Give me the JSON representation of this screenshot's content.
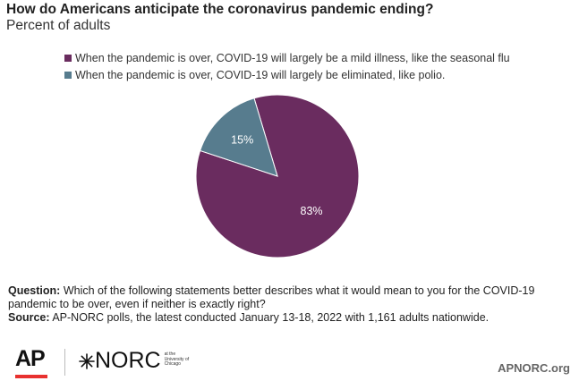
{
  "header": {
    "title": "How do Americans anticipate the coronavirus pandemic ending?",
    "subtitle": "Percent of adults"
  },
  "chart_data": {
    "type": "pie",
    "slices": [
      {
        "label": "When the pandemic is over, COVID-19 will largely be a mild illness, like the seasonal flu",
        "value": 83,
        "data_label": "83%",
        "color": "#6a2c5f"
      },
      {
        "label": "When the pandemic is over, COVID-19 will largely be eliminated, like polio.",
        "value": 15,
        "data_label": "15%",
        "color": "#577c8e"
      }
    ],
    "legend_position": "top"
  },
  "notes": {
    "question_label": "Question:",
    "question_text": " Which of the following statements better describes what it would mean to you for the COVID-19 pandemic to be over, even if neither is exactly right?",
    "source_label": "Source:",
    "source_text": "  AP-NORC polls, the latest conducted January 13-18, 2022 with 1,161 adults nationwide."
  },
  "footer": {
    "ap_logo": "AP",
    "norc_logo": "NORC",
    "norc_sub": [
      "at the",
      "University of",
      "Chicago"
    ],
    "site": "APNORC.org"
  }
}
